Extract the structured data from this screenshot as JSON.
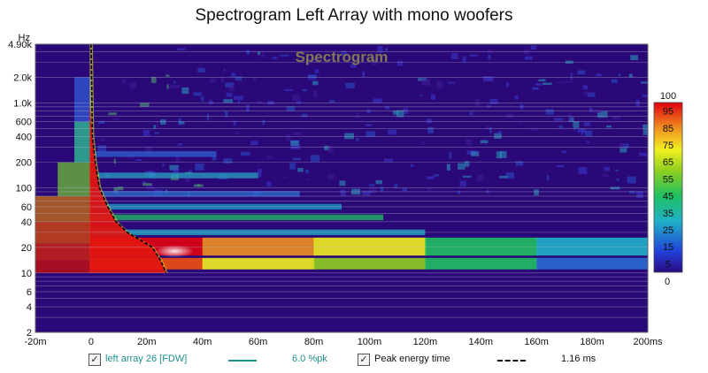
{
  "chart_data": {
    "type": "heatmap",
    "title": "Spectrogram Left Array with mono woofers",
    "watermark": "Spectrogram",
    "y_unit_label": "Hz",
    "y_ticks": [
      "4.90k",
      "2.0k",
      "1.0k",
      "600",
      "400",
      "200",
      "100",
      "60",
      "40",
      "20",
      "10",
      "6",
      "4",
      "2"
    ],
    "x_ticks": [
      "-20m",
      "0",
      "20m",
      "40m",
      "60m",
      "80m",
      "100m",
      "120m",
      "140m",
      "160m",
      "180m",
      "200ms"
    ],
    "x_range_ms": [
      -20,
      200
    ],
    "y_range_hz": [
      2,
      4900
    ],
    "y_scale": "log",
    "colorbar": {
      "max": "100",
      "min": "0",
      "ticks": [
        "95",
        "85",
        "75",
        "65",
        "55",
        "45",
        "35",
        "25",
        "15",
        "5"
      ]
    },
    "peak_energy_curve": [
      {
        "t": 0,
        "f": 4900
      },
      {
        "t": 0.5,
        "f": 400
      },
      {
        "t": 1.5,
        "f": 200
      },
      {
        "t": 3,
        "f": 100
      },
      {
        "t": 6,
        "f": 60
      },
      {
        "t": 9,
        "f": 40
      },
      {
        "t": 13,
        "f": 30
      },
      {
        "t": 18,
        "f": 24
      },
      {
        "t": 22,
        "f": 20
      },
      {
        "t": 25,
        "f": 14
      },
      {
        "t": 27,
        "f": 10
      }
    ],
    "resonance_bands": [
      {
        "f_low": 16,
        "f_high": 26,
        "decay_end_ms": 200,
        "peak_level": 95
      },
      {
        "f_low": 11,
        "f_high": 15,
        "decay_end_ms": 200,
        "peak_level": 80
      }
    ]
  },
  "legend": {
    "series_label": "left array 26 [FDW]",
    "smoothing": "6.0 %pk",
    "peak_label": "Peak energy time",
    "peak_value": "1.16 ms"
  },
  "colors": {
    "background": "#2a0878",
    "peak_curve": "#000000",
    "series_line": "#1f8f8f",
    "legend_text": "#1f8f8f"
  }
}
